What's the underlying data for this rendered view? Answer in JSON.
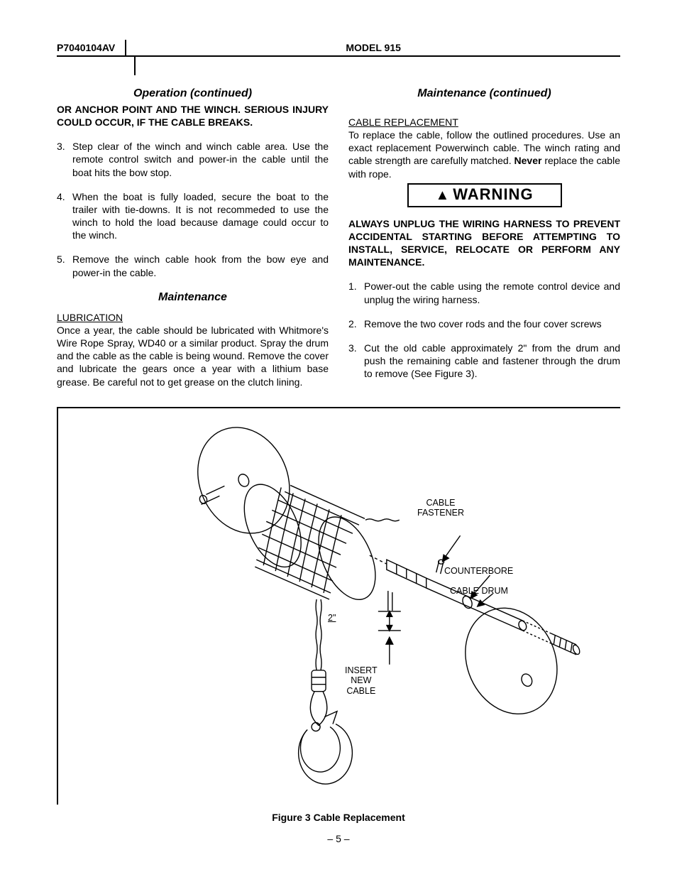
{
  "header": {
    "doc_id": "P7040104AV",
    "model": "MODEL 915"
  },
  "left_col": {
    "operation_title": "Operation (continued)",
    "operation_warn": "OR ANCHOR POINT AND THE WINCH.  SERIOUS INJURY COULD OCCUR, IF THE CABLE BREAKS.",
    "steps": [
      {
        "n": "3.",
        "t": "Step clear of the winch and winch cable area. Use the remote control switch and power-in the cable until the boat hits the bow stop."
      },
      {
        "n": "4.",
        "t": "When the boat is fully loaded, secure the boat to the trailer with tie-downs.  It is not recommeded to use the winch to hold the load because damage could occur to the winch."
      },
      {
        "n": "5.",
        "t": "Remove the winch cable hook from the bow eye and power-in the cable."
      }
    ],
    "maint_title": "Maintenance",
    "lub_head": "LUBRICATION",
    "lub_text": "Once a year, the cable should be lubricated with Whitmore's Wire Rope Spray, WD40 or a similar product.  Spray the  drum and the cable as the cable is being wound. Remove the cover and lubricate the gears once a year with a lithium base grease. Be careful not to get grease on the clutch lining."
  },
  "right_col": {
    "maint_title": "Maintenance (continued)",
    "cable_head": "CABLE REPLACEMENT",
    "cable_intro_a": "To replace the cable, follow the outlined procedures. Use an exact replacement Powerwinch cable. The winch rating and cable strength are carefully matched. ",
    "cable_intro_never": "Never",
    "cable_intro_b": " replace the cable with rope.",
    "warning_label": "WARNING",
    "warn_bold": "ALWAYS UNPLUG THE WIRING HARNESS TO PREVENT ACCIDENTAL STARTING BEFORE ATTEMPTING TO INSTALL, SERVICE, RELOCATE OR PERFORM ANY MAINTENANCE.",
    "steps": [
      {
        "n": "1.",
        "t": "Power-out the cable using the remote control  device and unplug the wiring harness."
      },
      {
        "n": "2.",
        "t": "Remove the two cover rods and the four cover screws"
      },
      {
        "n": "3.",
        "t": "Cut the old cable approximately 2\" from the drum and push the remaining cable and fastener through the drum to remove (See Figure 3)."
      }
    ]
  },
  "figure": {
    "caption": "Figure 3  Cable Replacement",
    "labels": {
      "cable_fastener": "CABLE\nFASTENER",
      "counterbore": "COUNTERBORE",
      "cable_drum": "CABLE DRUM",
      "two_inch": "2\"",
      "insert_new_cable": "INSERT\nNEW\nCABLE"
    }
  },
  "page_number": "– 5 –"
}
